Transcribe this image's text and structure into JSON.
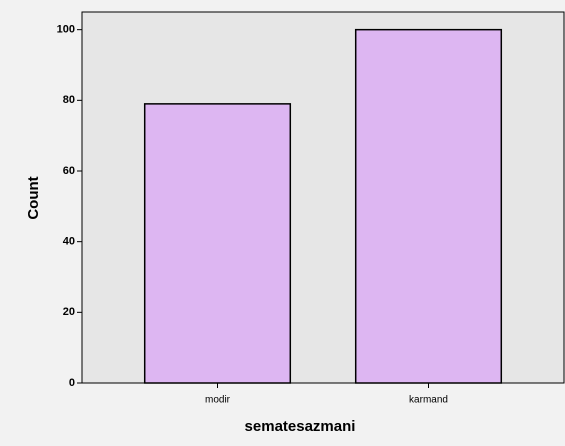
{
  "chart_data": {
    "type": "bar",
    "x_label": "sematesazmani",
    "y_label": "Count",
    "categories": [
      "modir",
      "karmand"
    ],
    "values": [
      79,
      100
    ],
    "color": "#ddb6f2",
    "ylim": [
      0,
      105
    ],
    "yticks": [
      0,
      20,
      40,
      60,
      80,
      100
    ],
    "grid": false
  }
}
